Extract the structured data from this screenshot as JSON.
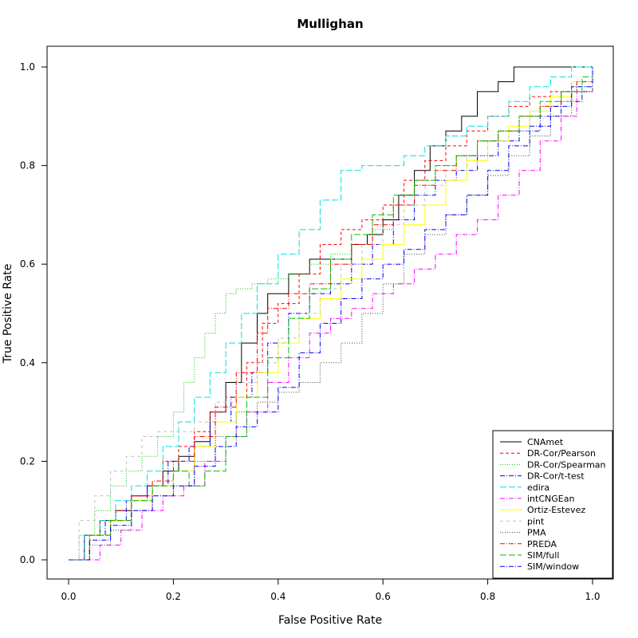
{
  "chart_data": {
    "type": "line",
    "title": "Mullighan",
    "xlabel": "False Positive Rate",
    "ylabel": "True Positive Rate",
    "xlim": [
      0,
      1
    ],
    "ylim": [
      0,
      1
    ],
    "xticks": [
      "0.0",
      "0.2",
      "0.4",
      "0.6",
      "0.8",
      "1.0"
    ],
    "yticks": [
      "0.0",
      "0.2",
      "0.4",
      "0.6",
      "0.8",
      "1.0"
    ],
    "grid": false,
    "legend_position": "bottom-right",
    "series": [
      {
        "name": "CNAmet",
        "color": "#000000",
        "dash": "solid",
        "x": [
          0.0,
          0.03,
          0.06,
          0.09,
          0.12,
          0.15,
          0.18,
          0.21,
          0.24,
          0.27,
          0.3,
          0.33,
          0.36,
          0.38,
          0.42,
          0.46,
          0.5,
          0.54,
          0.57,
          0.6,
          0.63,
          0.66,
          0.69,
          0.72,
          0.75,
          0.78,
          0.82,
          0.85,
          1.0
        ],
        "y": [
          0.0,
          0.05,
          0.08,
          0.1,
          0.13,
          0.15,
          0.18,
          0.21,
          0.24,
          0.3,
          0.36,
          0.44,
          0.5,
          0.54,
          0.58,
          0.61,
          0.61,
          0.64,
          0.66,
          0.69,
          0.74,
          0.79,
          0.84,
          0.87,
          0.9,
          0.95,
          0.97,
          1.0,
          1.0
        ]
      },
      {
        "name": "DR-Cor/Pearson",
        "color": "#ff0000",
        "dash": "4,3",
        "x": [
          0.0,
          0.03,
          0.06,
          0.09,
          0.12,
          0.15,
          0.18,
          0.21,
          0.24,
          0.27,
          0.3,
          0.34,
          0.37,
          0.4,
          0.44,
          0.48,
          0.52,
          0.56,
          0.6,
          0.64,
          0.68,
          0.72,
          0.76,
          0.8,
          0.84,
          0.88,
          0.92,
          0.96,
          1.0
        ],
        "y": [
          0.0,
          0.05,
          0.08,
          0.1,
          0.13,
          0.15,
          0.2,
          0.23,
          0.26,
          0.3,
          0.33,
          0.4,
          0.48,
          0.52,
          0.58,
          0.64,
          0.67,
          0.69,
          0.72,
          0.77,
          0.81,
          0.84,
          0.87,
          0.9,
          0.92,
          0.94,
          0.95,
          0.97,
          1.0
        ]
      },
      {
        "name": "DR-Cor/Spearman",
        "color": "#00c000",
        "dash": "1,2",
        "x": [
          0.0,
          0.02,
          0.05,
          0.08,
          0.11,
          0.14,
          0.17,
          0.2,
          0.22,
          0.24,
          0.26,
          0.28,
          0.3,
          0.32,
          0.35,
          0.38,
          0.42,
          0.46,
          0.5,
          0.54,
          0.58,
          0.62,
          0.66,
          0.7,
          0.74,
          0.78,
          0.82,
          0.86,
          0.9,
          0.94,
          0.97,
          1.0
        ],
        "y": [
          0.0,
          0.05,
          0.1,
          0.15,
          0.18,
          0.21,
          0.25,
          0.3,
          0.36,
          0.41,
          0.46,
          0.5,
          0.54,
          0.55,
          0.56,
          0.57,
          0.58,
          0.6,
          0.62,
          0.64,
          0.67,
          0.72,
          0.77,
          0.8,
          0.82,
          0.85,
          0.87,
          0.9,
          0.92,
          0.95,
          0.97,
          1.0
        ]
      },
      {
        "name": "DR-Cor/t-test",
        "color": "#0000ff",
        "dash": "6,2,1,2",
        "x": [
          0.0,
          0.03,
          0.07,
          0.11,
          0.15,
          0.19,
          0.23,
          0.27,
          0.31,
          0.35,
          0.38,
          0.42,
          0.46,
          0.5,
          0.54,
          0.58,
          0.62,
          0.66,
          0.7,
          0.74,
          0.78,
          0.82,
          0.86,
          0.9,
          0.94,
          0.98,
          1.0
        ],
        "y": [
          0.0,
          0.05,
          0.08,
          0.12,
          0.15,
          0.2,
          0.23,
          0.28,
          0.33,
          0.38,
          0.44,
          0.5,
          0.54,
          0.56,
          0.6,
          0.64,
          0.69,
          0.74,
          0.77,
          0.79,
          0.82,
          0.85,
          0.87,
          0.9,
          0.93,
          0.95,
          1.0
        ]
      },
      {
        "name": "edira",
        "color": "#00e0e0",
        "dash": "8,3",
        "x": [
          0.0,
          0.03,
          0.06,
          0.09,
          0.12,
          0.15,
          0.18,
          0.21,
          0.24,
          0.27,
          0.3,
          0.33,
          0.36,
          0.4,
          0.44,
          0.48,
          0.52,
          0.56,
          0.6,
          0.64,
          0.68,
          0.72,
          0.76,
          0.8,
          0.84,
          0.88,
          0.92,
          0.96,
          1.0
        ],
        "y": [
          0.0,
          0.05,
          0.08,
          0.12,
          0.15,
          0.18,
          0.23,
          0.28,
          0.33,
          0.38,
          0.44,
          0.5,
          0.56,
          0.62,
          0.67,
          0.73,
          0.79,
          0.8,
          0.8,
          0.82,
          0.84,
          0.86,
          0.88,
          0.9,
          0.93,
          0.96,
          0.98,
          1.0,
          1.0
        ]
      },
      {
        "name": "intCNGEan",
        "color": "#ff00ff",
        "dash": "6,2,1,2",
        "x": [
          0.0,
          0.06,
          0.1,
          0.14,
          0.18,
          0.22,
          0.26,
          0.3,
          0.34,
          0.38,
          0.42,
          0.46,
          0.5,
          0.54,
          0.58,
          0.62,
          0.66,
          0.7,
          0.74,
          0.78,
          0.82,
          0.86,
          0.9,
          0.94,
          0.97,
          1.0
        ],
        "y": [
          0.0,
          0.03,
          0.06,
          0.1,
          0.13,
          0.15,
          0.2,
          0.25,
          0.3,
          0.36,
          0.41,
          0.46,
          0.49,
          0.51,
          0.54,
          0.56,
          0.59,
          0.62,
          0.66,
          0.69,
          0.74,
          0.79,
          0.85,
          0.9,
          0.95,
          1.0
        ]
      },
      {
        "name": "Ortiz-Estevez",
        "color": "#ffff00",
        "dash": "solid",
        "x": [
          0.0,
          0.04,
          0.08,
          0.12,
          0.16,
          0.2,
          0.24,
          0.28,
          0.32,
          0.36,
          0.4,
          0.44,
          0.48,
          0.52,
          0.56,
          0.6,
          0.64,
          0.68,
          0.72,
          0.76,
          0.8,
          0.84,
          0.88,
          0.92,
          0.96,
          1.0
        ],
        "y": [
          0.0,
          0.05,
          0.08,
          0.12,
          0.15,
          0.18,
          0.23,
          0.28,
          0.33,
          0.38,
          0.44,
          0.49,
          0.53,
          0.57,
          0.61,
          0.64,
          0.68,
          0.72,
          0.77,
          0.81,
          0.85,
          0.88,
          0.91,
          0.94,
          0.97,
          1.0
        ]
      },
      {
        "name": "pint",
        "color": "#c0c0c0",
        "dash": "4,4",
        "x": [
          0.0,
          0.02,
          0.05,
          0.08,
          0.11,
          0.14,
          0.17,
          0.2,
          0.24,
          0.28,
          0.32,
          0.36,
          0.4,
          0.44,
          0.48,
          0.52,
          0.56,
          0.6,
          0.64,
          0.68,
          0.72,
          0.76,
          0.8,
          0.84,
          0.88,
          0.92,
          0.96,
          1.0
        ],
        "y": [
          0.0,
          0.08,
          0.13,
          0.18,
          0.21,
          0.25,
          0.26,
          0.26,
          0.28,
          0.32,
          0.36,
          0.4,
          0.45,
          0.5,
          0.55,
          0.6,
          0.64,
          0.68,
          0.72,
          0.76,
          0.79,
          0.82,
          0.85,
          0.87,
          0.9,
          0.93,
          0.96,
          1.0
        ]
      },
      {
        "name": "PMA",
        "color": "#404040",
        "dash": "1,2",
        "x": [
          0.0,
          0.04,
          0.08,
          0.12,
          0.16,
          0.2,
          0.24,
          0.28,
          0.32,
          0.36,
          0.4,
          0.44,
          0.48,
          0.52,
          0.56,
          0.6,
          0.64,
          0.68,
          0.72,
          0.76,
          0.8,
          0.84,
          0.88,
          0.92,
          0.96,
          1.0
        ],
        "y": [
          0.0,
          0.03,
          0.06,
          0.1,
          0.13,
          0.15,
          0.2,
          0.25,
          0.3,
          0.32,
          0.34,
          0.36,
          0.4,
          0.44,
          0.5,
          0.56,
          0.62,
          0.66,
          0.7,
          0.74,
          0.78,
          0.82,
          0.86,
          0.9,
          0.95,
          1.0
        ]
      },
      {
        "name": "PREDA",
        "color": "#ff0000",
        "dash": "6,2,1,2",
        "x": [
          0.0,
          0.04,
          0.08,
          0.12,
          0.16,
          0.2,
          0.24,
          0.28,
          0.32,
          0.36,
          0.38,
          0.42,
          0.46,
          0.5,
          0.54,
          0.58,
          0.62,
          0.66,
          0.7,
          0.74,
          0.78,
          0.82,
          0.86,
          0.9,
          0.94,
          0.97,
          1.0
        ],
        "y": [
          0.0,
          0.05,
          0.08,
          0.13,
          0.16,
          0.2,
          0.25,
          0.31,
          0.38,
          0.46,
          0.51,
          0.54,
          0.56,
          0.6,
          0.64,
          0.68,
          0.72,
          0.76,
          0.79,
          0.82,
          0.85,
          0.87,
          0.9,
          0.92,
          0.95,
          0.97,
          1.0
        ]
      },
      {
        "name": "SIM/full",
        "color": "#00c000",
        "dash": "8,3",
        "x": [
          0.0,
          0.04,
          0.08,
          0.12,
          0.16,
          0.2,
          0.23,
          0.26,
          0.3,
          0.34,
          0.38,
          0.42,
          0.46,
          0.5,
          0.54,
          0.58,
          0.62,
          0.66,
          0.7,
          0.74,
          0.78,
          0.82,
          0.86,
          0.9,
          0.94,
          0.98,
          1.0
        ],
        "y": [
          0.0,
          0.05,
          0.08,
          0.12,
          0.15,
          0.18,
          0.15,
          0.18,
          0.25,
          0.33,
          0.41,
          0.49,
          0.55,
          0.61,
          0.66,
          0.7,
          0.74,
          0.77,
          0.8,
          0.82,
          0.85,
          0.87,
          0.9,
          0.93,
          0.95,
          0.98,
          1.0
        ]
      },
      {
        "name": "SIM/window",
        "color": "#0000ff",
        "dash": "6,2,1,2",
        "x": [
          0.0,
          0.04,
          0.08,
          0.12,
          0.16,
          0.2,
          0.24,
          0.28,
          0.32,
          0.36,
          0.4,
          0.44,
          0.48,
          0.52,
          0.56,
          0.6,
          0.64,
          0.68,
          0.72,
          0.76,
          0.8,
          0.84,
          0.88,
          0.92,
          0.96,
          1.0
        ],
        "y": [
          0.0,
          0.04,
          0.07,
          0.1,
          0.13,
          0.15,
          0.19,
          0.23,
          0.27,
          0.3,
          0.35,
          0.42,
          0.48,
          0.53,
          0.57,
          0.6,
          0.63,
          0.67,
          0.7,
          0.74,
          0.79,
          0.84,
          0.88,
          0.92,
          0.96,
          1.0
        ]
      }
    ]
  }
}
